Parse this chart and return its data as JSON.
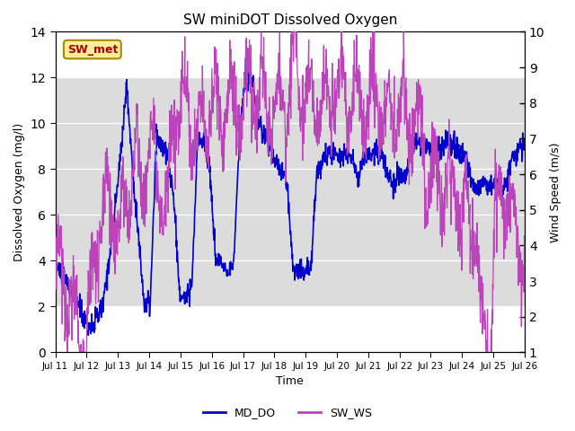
{
  "title": "SW miniDOT Dissolved Oxygen",
  "xlabel": "Time",
  "ylabel_left": "Dissolved Oxygen (mg/l)",
  "ylabel_right": "Wind Speed (m/s)",
  "annotation_text": "SW_met",
  "annotation_color": "#aa0000",
  "annotation_bg": "#ffee99",
  "annotation_border": "#aa8800",
  "legend_labels": [
    "MD_DO",
    "SW_WS"
  ],
  "color_DO": "#0000cc",
  "color_WS": "#bb44bb",
  "ylim_left": [
    0,
    14
  ],
  "ylim_right": [
    1.0,
    10.0
  ],
  "yticks_left": [
    0,
    2,
    4,
    6,
    8,
    10,
    12,
    14
  ],
  "yticks_right": [
    1.0,
    2.0,
    3.0,
    4.0,
    5.0,
    6.0,
    7.0,
    8.0,
    9.0,
    10.0
  ],
  "xticklabels": [
    "Jul 11",
    "Jul 12",
    "Jul 13",
    "Jul 14",
    "Jul 15",
    "Jul 16",
    "Jul 17",
    "Jul 18",
    "Jul 19",
    "Jul 20",
    "Jul 21",
    "Jul 22",
    "Jul 23",
    "Jul 24",
    "Jul 25",
    "Jul 26"
  ],
  "bg_band_low": 2,
  "bg_band_high": 12,
  "bg_gray": "#dcdcdc",
  "bg_white": "#ffffff",
  "axes_facecolor": "#ffffff",
  "fig_facecolor": "#ffffff"
}
